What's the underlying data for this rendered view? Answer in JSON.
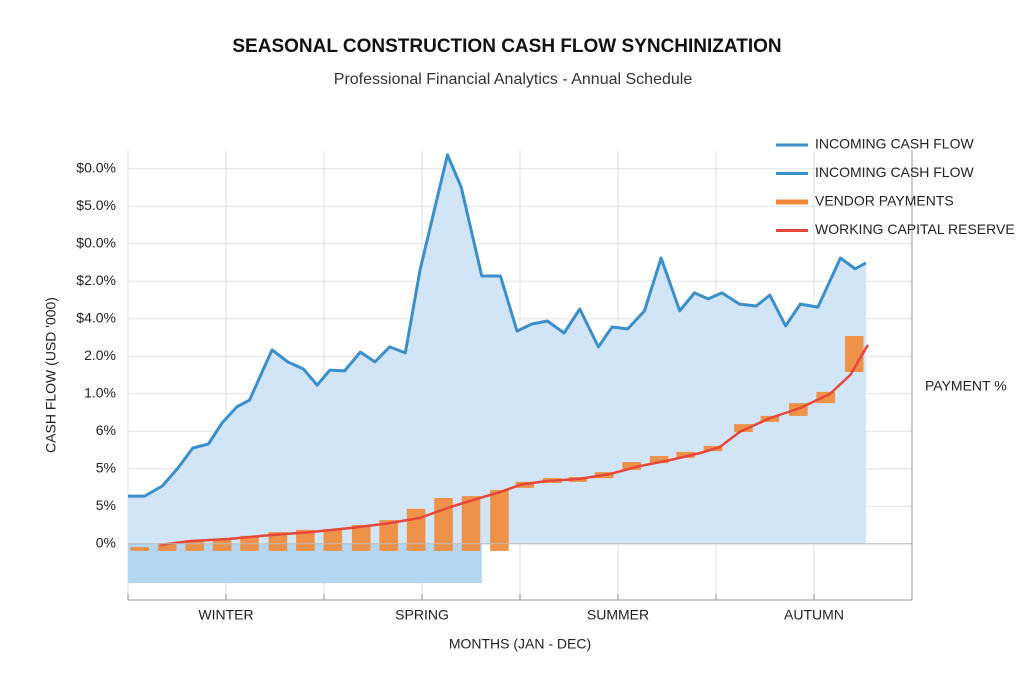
{
  "chart_data": {
    "type": "combo",
    "title": "SEASONAL CONSTRUCTION CASH FLOW SYNCHINIZATION",
    "subtitle": "Professional Financial Analytics - Annual Schedule",
    "xlabel": "MONTHS (JAN - DEC)",
    "ylabel": "CASH FLOW (USD '000)",
    "y2label": "PAYMENT %",
    "xlim": [
      0,
      8
    ],
    "ylim": [
      -1.5,
      10.5
    ],
    "xticks": [
      {
        "value": 1,
        "label": "WINTER"
      },
      {
        "value": 3,
        "label": "SPRING"
      },
      {
        "value": 5,
        "label": "SUMMER"
      },
      {
        "value": 7,
        "label": "AUTUMN"
      }
    ],
    "xgrid": [
      0,
      1,
      2,
      3,
      4,
      5,
      6,
      7,
      8
    ],
    "yticks": [
      {
        "value": 0,
        "label": "0%"
      },
      {
        "value": 1,
        "label": "5%"
      },
      {
        "value": 2,
        "label": "5%"
      },
      {
        "value": 3,
        "label": "6%"
      },
      {
        "value": 4,
        "label": "1.0%"
      },
      {
        "value": 5,
        "label": "2.0%"
      },
      {
        "value": 6,
        "label": "$4.0%"
      },
      {
        "value": 7,
        "label": "$2.0%"
      },
      {
        "value": 8,
        "label": "$0.0%"
      },
      {
        "value": 9,
        "label": "$5.0%"
      },
      {
        "value": 10,
        "label": "$0.0%"
      }
    ],
    "grid": true,
    "legend": "upper right",
    "series": [
      {
        "name": "INCOMING CASH FLOW",
        "type": "area",
        "color": "#3b8fcb",
        "fill": "#d2e5f6",
        "x": [
          0,
          0.17,
          0.35,
          0.51,
          0.66,
          0.82,
          0.96,
          1.11,
          1.24,
          1.47,
          1.63,
          1.79,
          1.93,
          2.06,
          2.21,
          2.37,
          2.52,
          2.67,
          2.83,
          2.98,
          3.26,
          3.4,
          3.61,
          3.8,
          3.97,
          4.12,
          4.28,
          4.45,
          4.61,
          4.8,
          4.94,
          5.1,
          5.27,
          5.44,
          5.63,
          5.78,
          5.92,
          6.06,
          6.24,
          6.41,
          6.55,
          6.71,
          6.86,
          7.04,
          7.27,
          7.42,
          7.53
        ],
        "values": [
          1.27,
          1.27,
          1.54,
          2.02,
          2.55,
          2.66,
          3.22,
          3.65,
          3.83,
          5.17,
          4.85,
          4.66,
          4.23,
          4.63,
          4.61,
          5.11,
          4.85,
          5.25,
          5.09,
          7.3,
          10.37,
          9.51,
          7.14,
          7.14,
          5.67,
          5.86,
          5.94,
          5.62,
          6.26,
          5.25,
          5.78,
          5.73,
          6.21,
          7.62,
          6.21,
          6.69,
          6.53,
          6.69,
          6.39,
          6.34,
          6.63,
          5.81,
          6.39,
          6.31,
          7.62,
          7.33,
          7.49
        ]
      },
      {
        "name": "INCOMING CASH FLOW",
        "type": "band",
        "color": "#3b8fcb",
        "fill": "#b5d6f0",
        "x": [
          0,
          3.61
        ],
        "values": [
          -1.05,
          -1.05
        ]
      },
      {
        "name": "VENDOR PAYMENTS",
        "type": "bar",
        "color": "#f08a3a",
        "x": [
          0.12,
          0.4,
          0.68,
          0.96,
          1.24,
          1.53,
          1.81,
          2.09,
          2.38,
          2.66,
          2.94,
          3.22,
          3.5,
          3.79,
          4.05,
          4.33,
          4.59,
          4.86,
          5.14,
          5.42,
          5.69,
          5.97,
          6.28,
          6.55,
          6.84,
          7.12,
          7.41
        ],
        "lows": [
          -0.19,
          -0.19,
          -0.19,
          -0.19,
          -0.19,
          -0.19,
          -0.19,
          -0.19,
          -0.19,
          -0.19,
          -0.19,
          -0.19,
          -0.19,
          -0.19,
          1.49,
          1.62,
          1.65,
          1.75,
          1.97,
          2.15,
          2.29,
          2.47,
          2.98,
          3.25,
          3.41,
          3.75,
          4.58
        ],
        "values": [
          -0.09,
          0.02,
          0.1,
          0.13,
          0.21,
          0.31,
          0.37,
          0.39,
          0.5,
          0.63,
          0.93,
          1.22,
          1.27,
          1.43,
          1.65,
          1.75,
          1.78,
          1.91,
          2.18,
          2.34,
          2.45,
          2.61,
          3.19,
          3.41,
          3.75,
          4.05,
          5.54
        ]
      },
      {
        "name": "WORKING CAPITAL RESERVE",
        "type": "line",
        "color": "#e5483a",
        "x": [
          0.33,
          0.63,
          1.04,
          1.45,
          1.86,
          2.27,
          2.67,
          2.98,
          3.29,
          3.59,
          3.8,
          4.0,
          4.26,
          4.61,
          4.92,
          5.22,
          5.53,
          5.84,
          6.04,
          6.24,
          6.55,
          6.86,
          7.16,
          7.37,
          7.55
        ],
        "values": [
          -0.03,
          0.07,
          0.13,
          0.23,
          0.31,
          0.42,
          0.55,
          0.69,
          0.98,
          1.22,
          1.38,
          1.57,
          1.67,
          1.73,
          1.86,
          2.07,
          2.23,
          2.42,
          2.58,
          2.98,
          3.35,
          3.62,
          3.99,
          4.5,
          5.3
        ]
      }
    ]
  }
}
